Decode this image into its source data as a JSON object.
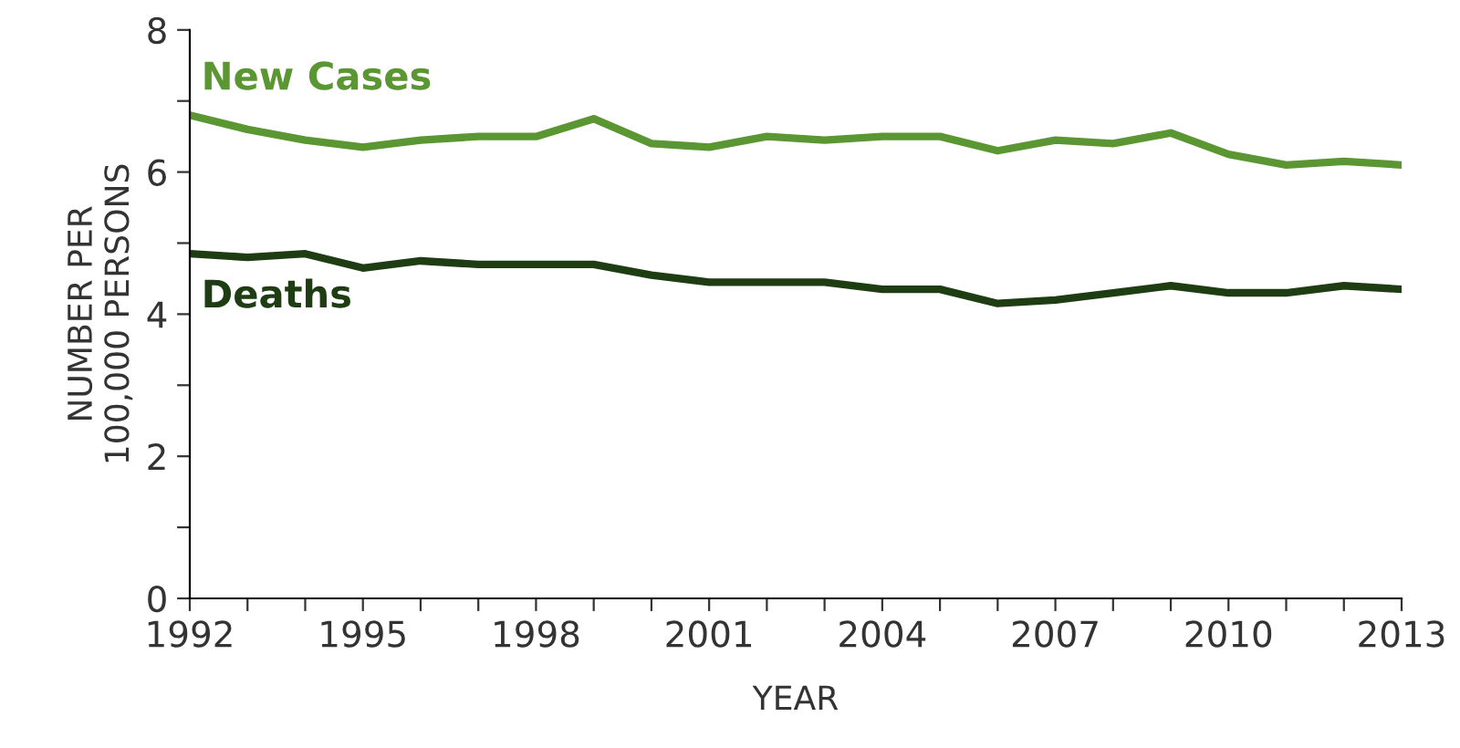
{
  "chart_data": {
    "type": "line",
    "xlabel": "YEAR",
    "ylabel": "NUMBER PER\n100,000 PERSONS",
    "x": [
      1992,
      1993,
      1994,
      1995,
      1996,
      1997,
      1998,
      1999,
      2000,
      2001,
      2002,
      2003,
      2004,
      2005,
      2006,
      2007,
      2008,
      2009,
      2010,
      2011,
      2012,
      2013
    ],
    "series": [
      {
        "name": "New Cases",
        "color": "#5a9632",
        "values": [
          6.8,
          6.6,
          6.45,
          6.35,
          6.45,
          6.5,
          6.5,
          6.75,
          6.4,
          6.35,
          6.5,
          6.45,
          6.5,
          6.5,
          6.3,
          6.45,
          6.4,
          6.55,
          6.25,
          6.1,
          6.15,
          6.1
        ]
      },
      {
        "name": "Deaths",
        "color": "#1f3d12",
        "values": [
          4.85,
          4.8,
          4.85,
          4.65,
          4.75,
          4.7,
          4.7,
          4.7,
          4.55,
          4.45,
          4.45,
          4.45,
          4.35,
          4.35,
          4.15,
          4.2,
          4.3,
          4.4,
          4.3,
          4.3,
          4.4,
          4.35
        ]
      }
    ],
    "xlim": [
      1992,
      2013
    ],
    "xticks": [
      1992,
      {
        "value": 1993,
        "label": null
      },
      {
        "value": 1994,
        "label": null
      },
      1995,
      {
        "value": 1996,
        "label": null
      },
      {
        "value": 1997,
        "label": null
      },
      1998,
      {
        "value": 1999,
        "label": null
      },
      {
        "value": 2000,
        "label": null
      },
      2001,
      {
        "value": 2002,
        "label": null
      },
      {
        "value": 2003,
        "label": null
      },
      2004,
      {
        "value": 2005,
        "label": null
      },
      {
        "value": 2006,
        "label": null
      },
      2007,
      {
        "value": 2008,
        "label": null
      },
      {
        "value": 2009,
        "label": null
      },
      2010,
      {
        "value": 2011,
        "label": null
      },
      {
        "value": 2012,
        "label": null
      },
      2013
    ],
    "ylim": [
      0,
      8
    ],
    "yticks": [
      0,
      {
        "value": 1,
        "label": null
      },
      2,
      {
        "value": 3,
        "label": null
      },
      4,
      {
        "value": 5,
        "label": null
      },
      6,
      {
        "value": 7,
        "label": null
      },
      8
    ],
    "grid": false,
    "legend": false,
    "marker": "none",
    "line_style": "solid"
  }
}
